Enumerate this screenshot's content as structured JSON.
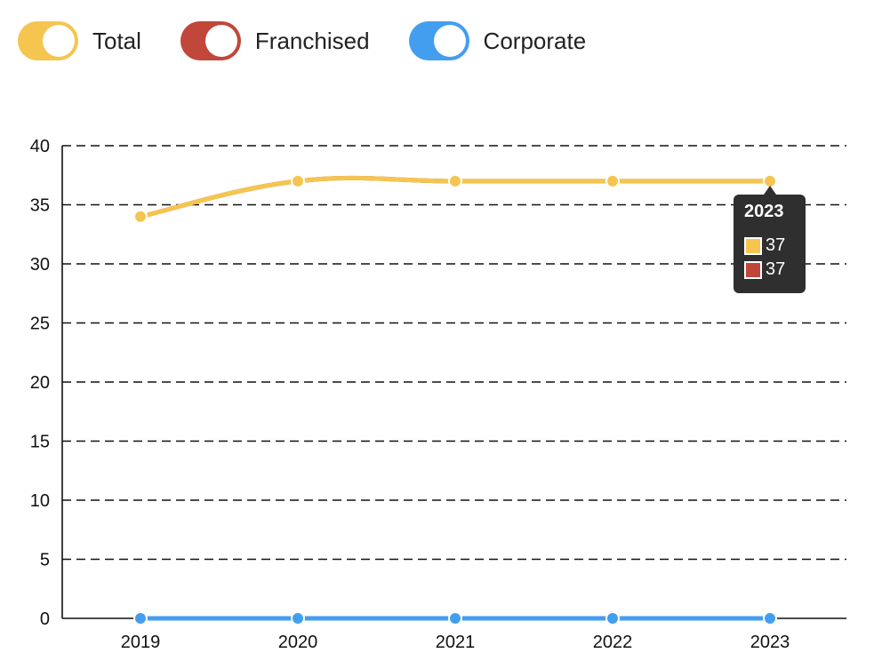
{
  "legend": [
    {
      "label": "Total",
      "color": "#F5C550"
    },
    {
      "label": "Franchised",
      "color": "#C0473A"
    },
    {
      "label": "Corporate",
      "color": "#439EF0"
    }
  ],
  "chart_data": {
    "type": "line",
    "x": [
      "2019",
      "2020",
      "2021",
      "2022",
      "2023"
    ],
    "series": [
      {
        "name": "Total",
        "values": [
          34,
          37,
          37,
          37,
          37
        ],
        "color": "#F5C550"
      },
      {
        "name": "Franchised",
        "values": [
          34,
          37,
          37,
          37,
          37
        ],
        "color": "#C0473A"
      },
      {
        "name": "Corporate",
        "values": [
          0,
          0,
          0,
          0,
          0
        ],
        "color": "#439EF0"
      }
    ],
    "ylim": [
      0,
      40
    ],
    "yticks": [
      0,
      5,
      10,
      15,
      20,
      25,
      30,
      35,
      40
    ],
    "grid": "dashed horizontal",
    "legend_position": "top-left"
  },
  "tooltip": {
    "title": "2023",
    "rows": [
      {
        "value": "37",
        "color": "#F5C550"
      },
      {
        "value": "37",
        "color": "#C0473A"
      }
    ]
  }
}
